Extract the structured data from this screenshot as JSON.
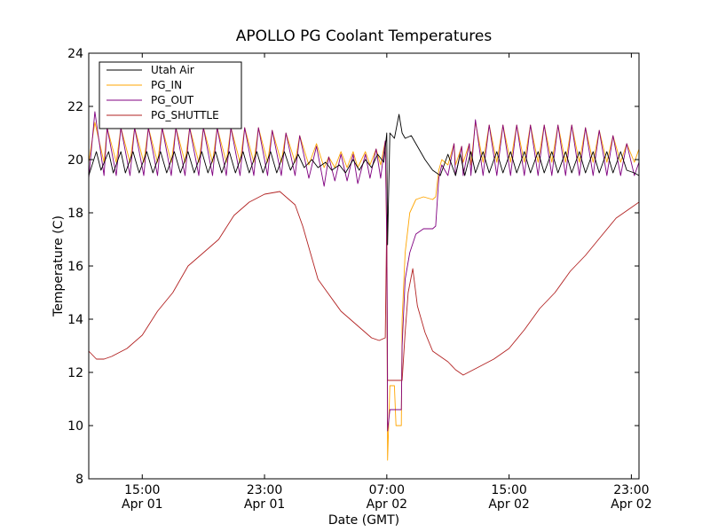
{
  "chart_data": {
    "type": "line",
    "title": "APOLLO PG Coolant Temperatures",
    "xlabel": "Date (GMT)",
    "ylabel": "Temperature (C)",
    "ylim": [
      8,
      24
    ],
    "yticks": [
      8,
      10,
      12,
      14,
      16,
      18,
      20,
      22,
      24
    ],
    "xlim_hours": [
      11.5,
      47.5
    ],
    "xticks": [
      {
        "hour": 15,
        "time": "15:00",
        "date": "Apr 01"
      },
      {
        "hour": 23,
        "time": "23:00",
        "date": "Apr 01"
      },
      {
        "hour": 31,
        "time": "07:00",
        "date": "Apr 02"
      },
      {
        "hour": 39,
        "time": "15:00",
        "date": "Apr 02"
      },
      {
        "hour": 47,
        "time": "23:00",
        "date": "Apr 02"
      }
    ],
    "legend_position": "top-left",
    "series": [
      {
        "name": "Utah Air",
        "color": "#000000",
        "x": [
          11.5,
          12.0,
          12.3,
          12.8,
          13.1,
          13.6,
          13.9,
          14.4,
          14.8,
          15.3,
          15.7,
          16.2,
          16.6,
          17.1,
          17.5,
          18.0,
          18.4,
          18.9,
          19.3,
          19.8,
          20.2,
          20.7,
          21.1,
          21.6,
          22.0,
          22.5,
          22.9,
          23.4,
          23.8,
          24.3,
          24.7,
          25.2,
          25.6,
          26.1,
          26.5,
          27.0,
          27.4,
          27.9,
          28.3,
          28.8,
          29.2,
          29.6,
          30.0,
          30.4,
          30.8,
          31.0,
          31.05,
          31.2,
          31.5,
          31.8,
          32.0,
          32.2,
          32.6,
          33.0,
          33.5,
          34.0,
          34.5,
          35.0,
          35.5,
          35.8,
          36.1,
          36.5,
          36.8,
          37.3,
          37.7,
          38.2,
          38.6,
          39.1,
          39.5,
          40.0,
          40.4,
          40.9,
          41.3,
          41.8,
          42.2,
          42.7,
          43.1,
          43.6,
          44.0,
          44.5,
          44.9,
          45.4,
          45.8,
          46.3,
          46.7,
          47.2,
          47.5
        ],
        "y": [
          19.4,
          20.3,
          19.6,
          20.3,
          19.5,
          20.3,
          19.5,
          20.3,
          19.5,
          20.3,
          19.5,
          20.3,
          19.5,
          20.3,
          19.5,
          20.3,
          19.5,
          20.3,
          19.5,
          20.3,
          19.5,
          20.3,
          19.5,
          20.3,
          19.5,
          20.3,
          19.5,
          20.3,
          19.5,
          20.3,
          19.6,
          20.2,
          19.7,
          20.0,
          19.7,
          19.9,
          19.6,
          19.8,
          19.5,
          20.0,
          19.6,
          20.0,
          19.7,
          20.2,
          19.9,
          21.0,
          16.8,
          21.0,
          20.8,
          21.7,
          21.0,
          20.8,
          20.9,
          20.5,
          20.0,
          19.6,
          19.4,
          20.2,
          19.4,
          20.2,
          19.4,
          20.3,
          19.5,
          20.3,
          19.5,
          20.3,
          19.5,
          20.3,
          19.5,
          20.3,
          19.5,
          20.3,
          19.5,
          20.3,
          19.5,
          20.3,
          19.5,
          20.3,
          19.5,
          20.3,
          19.5,
          20.3,
          19.5,
          20.3,
          19.6,
          19.5,
          19.4
        ]
      },
      {
        "name": "PG_IN",
        "color": "#FFA500",
        "x": [
          11.5,
          11.9,
          12.5,
          12.7,
          13.3,
          13.6,
          14.2,
          14.5,
          15.1,
          15.4,
          16.0,
          16.3,
          16.9,
          17.2,
          17.8,
          18.1,
          18.7,
          19.0,
          19.6,
          19.9,
          20.5,
          20.8,
          21.4,
          21.7,
          22.3,
          22.6,
          23.2,
          23.5,
          24.1,
          24.4,
          25.0,
          25.3,
          25.9,
          26.4,
          26.9,
          27.2,
          27.6,
          28.0,
          28.4,
          28.8,
          29.1,
          29.6,
          29.9,
          30.3,
          30.6,
          30.9,
          31.0,
          31.05,
          31.2,
          31.5,
          31.6,
          31.8,
          31.95,
          32.0,
          32.2,
          32.5,
          32.9,
          33.4,
          34.0,
          34.2,
          34.4,
          34.6,
          35.0,
          35.4,
          35.5,
          35.9,
          36.0,
          36.4,
          36.5,
          36.8,
          37.3,
          37.7,
          38.2,
          38.6,
          39.1,
          39.5,
          40.0,
          40.4,
          40.9,
          41.3,
          41.8,
          42.2,
          42.7,
          43.1,
          43.6,
          44.0,
          44.5,
          44.9,
          45.4,
          45.8,
          46.3,
          46.7,
          47.2,
          47.5
        ],
        "y": [
          19.9,
          21.4,
          19.9,
          21.2,
          19.9,
          21.2,
          19.9,
          21.2,
          19.9,
          21.2,
          19.9,
          21.2,
          19.9,
          21.2,
          19.9,
          21.2,
          19.9,
          21.2,
          19.9,
          21.2,
          19.9,
          21.2,
          19.9,
          21.2,
          19.9,
          21.2,
          19.9,
          21.1,
          19.9,
          21.0,
          19.9,
          20.9,
          19.8,
          20.6,
          19.7,
          20.1,
          19.7,
          20.3,
          19.7,
          20.3,
          19.7,
          20.3,
          19.8,
          20.4,
          19.8,
          20.7,
          17.0,
          8.7,
          11.5,
          11.5,
          10.0,
          10.0,
          10.0,
          14.0,
          16.5,
          18.0,
          18.5,
          18.6,
          18.5,
          18.6,
          19.6,
          20.0,
          19.8,
          20.6,
          19.8,
          20.5,
          19.9,
          20.6,
          19.8,
          21.4,
          19.9,
          21.3,
          19.9,
          21.3,
          19.9,
          21.3,
          19.9,
          21.3,
          19.9,
          21.3,
          19.9,
          21.3,
          19.9,
          21.3,
          19.9,
          21.2,
          19.9,
          21.1,
          19.9,
          20.9,
          19.9,
          20.6,
          19.9,
          20.4
        ]
      },
      {
        "name": "PG_OUT",
        "color": "#800080",
        "x": [
          11.5,
          11.9,
          12.5,
          12.7,
          13.3,
          13.6,
          14.2,
          14.5,
          15.1,
          15.4,
          16.0,
          16.3,
          16.9,
          17.2,
          17.8,
          18.1,
          18.7,
          19.0,
          19.6,
          19.9,
          20.5,
          20.8,
          21.4,
          21.7,
          22.3,
          22.6,
          23.2,
          23.5,
          24.1,
          24.4,
          25.0,
          25.3,
          25.9,
          26.4,
          26.9,
          27.2,
          27.6,
          28.0,
          28.4,
          28.8,
          29.1,
          29.6,
          29.9,
          30.3,
          30.6,
          30.9,
          31.0,
          31.05,
          31.2,
          31.5,
          31.6,
          31.8,
          31.95,
          32.0,
          32.2,
          32.5,
          32.9,
          33.4,
          34.0,
          34.2,
          34.4,
          34.6,
          35.0,
          35.4,
          35.5,
          35.9,
          36.0,
          36.4,
          36.5,
          36.8,
          37.3,
          37.7,
          38.2,
          38.6,
          39.1,
          39.5,
          40.0,
          40.4,
          40.9,
          41.3,
          41.8,
          42.2,
          42.7,
          43.1,
          43.6,
          44.0,
          44.5,
          44.9,
          45.4,
          45.8,
          46.3,
          46.7,
          47.2,
          47.5
        ],
        "y": [
          19.3,
          21.8,
          19.4,
          21.2,
          19.4,
          21.2,
          19.4,
          21.2,
          19.4,
          21.2,
          19.4,
          21.2,
          19.4,
          21.2,
          19.4,
          21.2,
          19.4,
          21.2,
          19.4,
          21.2,
          19.4,
          21.2,
          19.4,
          21.2,
          19.4,
          21.2,
          19.4,
          21.1,
          19.4,
          21.0,
          19.4,
          20.9,
          19.3,
          20.5,
          19.0,
          20.1,
          19.2,
          20.2,
          19.2,
          20.2,
          19.1,
          20.2,
          19.3,
          20.4,
          19.3,
          20.7,
          17.0,
          9.8,
          10.6,
          10.6,
          10.6,
          10.6,
          10.6,
          13.0,
          15.5,
          16.5,
          17.2,
          17.4,
          17.4,
          17.5,
          19.3,
          19.8,
          19.4,
          20.6,
          19.4,
          20.5,
          19.4,
          20.6,
          19.4,
          21.5,
          19.4,
          21.3,
          19.4,
          21.3,
          19.4,
          21.3,
          19.4,
          21.3,
          19.4,
          21.3,
          19.4,
          21.3,
          19.4,
          21.3,
          19.4,
          21.2,
          19.4,
          21.1,
          19.4,
          20.9,
          19.4,
          20.6,
          19.4,
          19.9
        ]
      },
      {
        "name": "PG_SHUTTLE",
        "color": "#B22222",
        "x": [
          11.5,
          12.0,
          12.5,
          13.0,
          14.0,
          15.0,
          16.0,
          17.0,
          18.0,
          19.0,
          20.0,
          21.0,
          22.0,
          23.0,
          24.0,
          25.0,
          25.5,
          26.0,
          26.5,
          27.0,
          28.0,
          29.0,
          30.0,
          30.5,
          30.9,
          31.0,
          31.05,
          31.2,
          31.5,
          31.8,
          32.0,
          32.2,
          32.4,
          32.7,
          33.0,
          33.5,
          34.0,
          35.0,
          35.5,
          36.0,
          37.0,
          38.0,
          39.0,
          40.0,
          41.0,
          42.0,
          43.0,
          44.0,
          45.0,
          46.0,
          47.0,
          47.5
        ],
        "y": [
          12.8,
          12.5,
          12.5,
          12.6,
          12.9,
          13.4,
          14.3,
          15.0,
          16.0,
          16.5,
          17.0,
          17.9,
          18.4,
          18.7,
          18.8,
          18.3,
          17.5,
          16.5,
          15.5,
          15.1,
          14.3,
          13.8,
          13.3,
          13.2,
          13.3,
          17.8,
          11.7,
          11.7,
          11.7,
          11.7,
          11.7,
          13.5,
          15.0,
          15.9,
          14.5,
          13.5,
          12.8,
          12.4,
          12.1,
          11.9,
          12.2,
          12.5,
          12.9,
          13.6,
          14.4,
          15.0,
          15.8,
          16.4,
          17.1,
          17.8,
          18.2,
          18.4
        ]
      }
    ]
  }
}
